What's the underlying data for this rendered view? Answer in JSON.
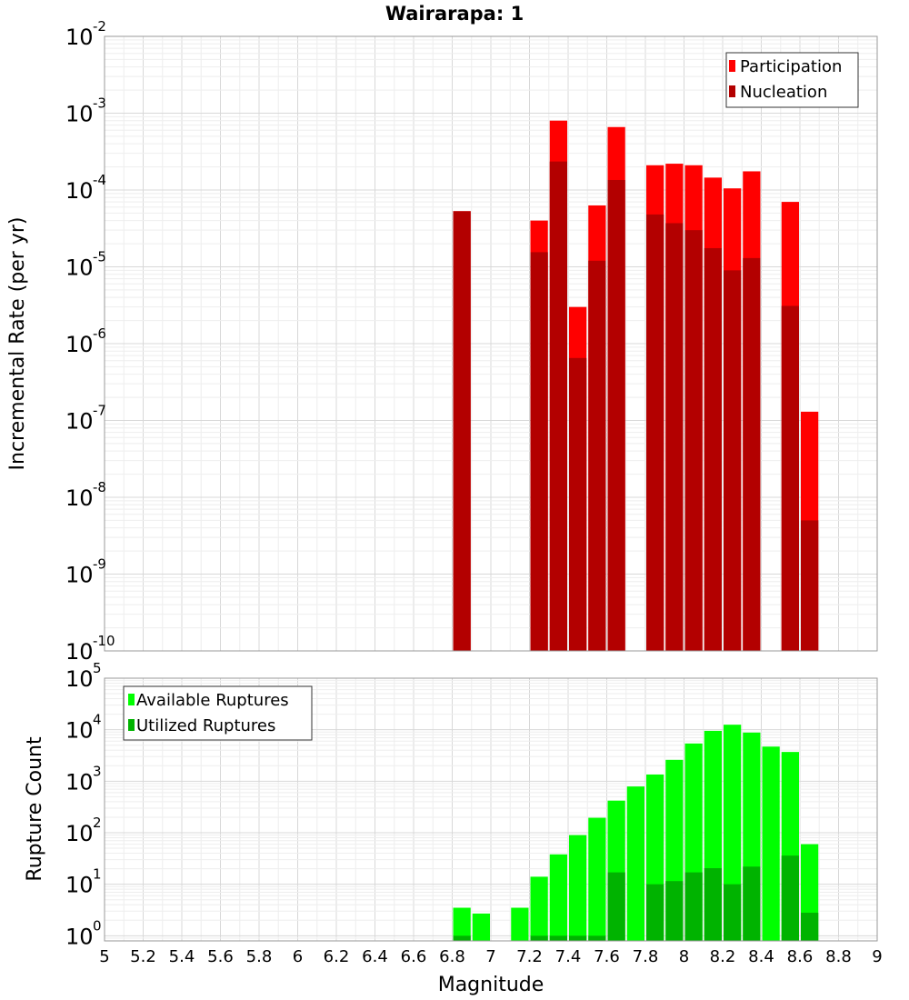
{
  "colors": {
    "participation": "#ff0000",
    "nucleation": "#b30000",
    "available": "#00ff00",
    "utilized": "#00b300",
    "grid_minor": "#eeeeee",
    "grid_major": "#d8d8d8",
    "frame": "#999999"
  },
  "chart_data": [
    {
      "type": "bar",
      "scale": "log",
      "title": "Wairarapa: 1",
      "xlabel": "Magnitude",
      "ylabel": "Incremental Rate (per yr)",
      "xlim": [
        5,
        9
      ],
      "ylim_exp": [
        -10,
        -2
      ],
      "ytick_base": "10",
      "ytick_exps": [
        "-10",
        "-9",
        "-8",
        "-7",
        "-6",
        "-5",
        "-4",
        "-3",
        "-2"
      ],
      "bin_width": 0.1,
      "legend_position": "top-right",
      "series": [
        {
          "name": "Participation",
          "color_key": "participation",
          "points": [
            [
              6.85,
              5.3e-05
            ],
            [
              7.25,
              4e-05
            ],
            [
              7.35,
              0.0008
            ],
            [
              7.45,
              3e-06
            ],
            [
              7.55,
              6.3e-05
            ],
            [
              7.65,
              0.00066
            ],
            [
              7.85,
              0.00021
            ],
            [
              7.95,
              0.00022
            ],
            [
              8.05,
              0.00021
            ],
            [
              8.15,
              0.000145
            ],
            [
              8.25,
              0.000105
            ],
            [
              8.35,
              0.000175
            ],
            [
              8.55,
              7e-05
            ],
            [
              8.65,
              1.3e-07
            ]
          ]
        },
        {
          "name": "Nucleation",
          "color_key": "nucleation",
          "points": [
            [
              6.85,
              5.3e-05
            ],
            [
              7.25,
              1.55e-05
            ],
            [
              7.35,
              0.000235
            ],
            [
              7.45,
              6.5e-07
            ],
            [
              7.55,
              1.2e-05
            ],
            [
              7.65,
              0.000135
            ],
            [
              7.85,
              4.8e-05
            ],
            [
              7.95,
              3.7e-05
            ],
            [
              8.05,
              3e-05
            ],
            [
              8.15,
              1.75e-05
            ],
            [
              8.25,
              9e-06
            ],
            [
              8.35,
              1.3e-05
            ],
            [
              8.55,
              3.1e-06
            ],
            [
              8.65,
              5e-09
            ]
          ]
        }
      ]
    },
    {
      "type": "bar",
      "scale": "log",
      "title": "",
      "xlabel": "Magnitude",
      "ylabel": "Rupture Count",
      "xlim": [
        5,
        9
      ],
      "ylim_exp": [
        -0.1,
        5
      ],
      "ytick_base": "10",
      "ytick_exps": [
        "0",
        "1",
        "2",
        "3",
        "4",
        "5"
      ],
      "xticks": [
        "5",
        "5.2",
        "5.4",
        "5.6",
        "5.8",
        "6",
        "6.2",
        "6.4",
        "6.6",
        "6.8",
        "7",
        "7.2",
        "7.4",
        "7.6",
        "7.8",
        "8",
        "8.2",
        "8.4",
        "8.6",
        "8.8",
        "9"
      ],
      "bin_width": 0.1,
      "legend_position": "top-left",
      "series": [
        {
          "name": "Available Ruptures",
          "color_key": "available",
          "points": [
            [
              6.85,
              3.5
            ],
            [
              6.95,
              2.7
            ],
            [
              7.15,
              3.5
            ],
            [
              7.25,
              14
            ],
            [
              7.35,
              38
            ],
            [
              7.45,
              90
            ],
            [
              7.55,
              195
            ],
            [
              7.65,
              420
            ],
            [
              7.75,
              790
            ],
            [
              7.85,
              1350
            ],
            [
              7.95,
              2600
            ],
            [
              8.05,
              5400
            ],
            [
              8.15,
              9500
            ],
            [
              8.25,
              12500
            ],
            [
              8.35,
              8800
            ],
            [
              8.45,
              4700
            ],
            [
              8.55,
              3700
            ],
            [
              8.65,
              60
            ]
          ]
        },
        {
          "name": "Utilized Ruptures",
          "color_key": "utilized",
          "points": [
            [
              6.85,
              1
            ],
            [
              7.25,
              1
            ],
            [
              7.35,
              1
            ],
            [
              7.45,
              1
            ],
            [
              7.55,
              1
            ],
            [
              7.65,
              17
            ],
            [
              7.85,
              10
            ],
            [
              7.95,
              11.5
            ],
            [
              8.05,
              17
            ],
            [
              8.15,
              20.5
            ],
            [
              8.25,
              10
            ],
            [
              8.35,
              22
            ],
            [
              8.55,
              36
            ],
            [
              8.65,
              2.8
            ]
          ]
        }
      ]
    }
  ]
}
